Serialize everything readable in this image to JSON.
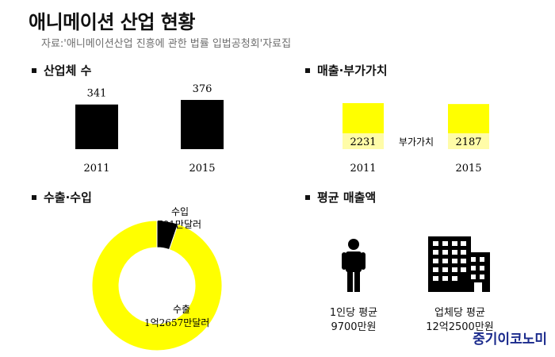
{
  "header": {
    "title": "애니메이션 산업 현황",
    "source": "자료:'애니메이션산업 진흥에 관한 법률 입법공청회'자료집"
  },
  "colors": {
    "black": "#000000",
    "yellow": "#ffff00",
    "pale_yellow": "#fffca8",
    "brand": "#1a2a8c"
  },
  "chart_data": [
    {
      "type": "bar",
      "title": "산업체 수",
      "categories": [
        "2011",
        "2015"
      ],
      "values": [
        341,
        376
      ],
      "value_labels": [
        "341",
        "376"
      ]
    },
    {
      "type": "bar",
      "title": "매출·부가가치",
      "categories": [
        "2011",
        "2015"
      ],
      "series": [
        {
          "name": "부가가치",
          "values": [
            2231,
            2187
          ]
        }
      ],
      "series_label": "부가가치",
      "value_labels": [
        "2231",
        "2187"
      ]
    },
    {
      "type": "pie",
      "title": "수출·수입",
      "slices": [
        {
          "label": "수입",
          "value_label": "701만달러",
          "value": 701
        },
        {
          "label": "수출",
          "value_label": "1억2657만달러",
          "value": 12657
        }
      ]
    }
  ],
  "average": {
    "title": "평균 매출액",
    "person": {
      "icon": "person-icon",
      "label": "1인당 평균",
      "value": "9700만원"
    },
    "company": {
      "icon": "building-icon",
      "label": "업체당 평균",
      "value": "12억2500만원"
    }
  },
  "brand": "중기이코노미"
}
